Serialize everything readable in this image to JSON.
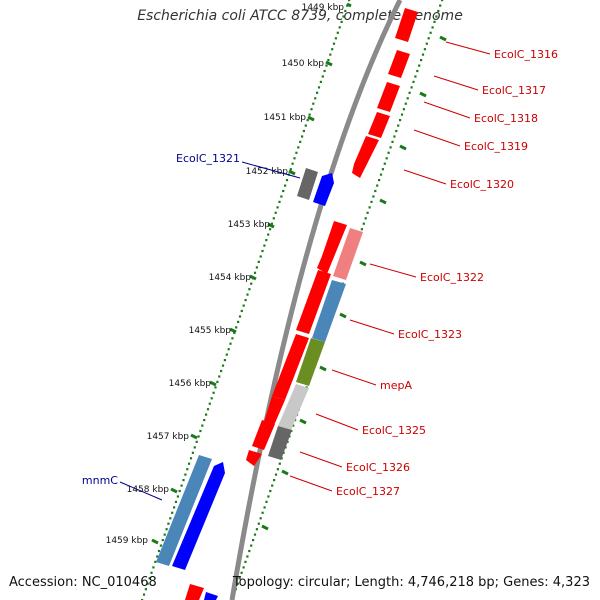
{
  "title": "Escherichia coli ATCC 8739, complete genome",
  "footer": {
    "accession": "Accession: NC_010468",
    "summary": "Topology: circular; Length: 4,746,218 bp; Genes: 4,323"
  },
  "colors": {
    "backbone": "#8a8a8a",
    "tick": "#1a7a1a",
    "label_forward": "#00008b",
    "label_reverse": "#cc0000",
    "gene_red": "#ff0000",
    "gene_blue": "#0000ff",
    "gene_steel": "#4a86b8",
    "gene_olive": "#6b8e23",
    "gene_gray": "#666666",
    "gene_lightgray": "#c8c8c8",
    "gene_pink": "#f08080"
  },
  "ticks": [
    "1449 kbp",
    "1450 kbp",
    "1451 kbp",
    "1452 kbp",
    "1453 kbp",
    "1454 kbp",
    "1455 kbp",
    "1456 kbp",
    "1457 kbp",
    "1458 kbp",
    "1459 kbp"
  ],
  "forward_labels": [
    "EcolC_1321",
    "mnmC"
  ],
  "reverse_labels": [
    "EcolC_1316",
    "EcolC_1317",
    "EcolC_1318",
    "EcolC_1319",
    "EcolC_1320",
    "EcolC_1322",
    "EcolC_1323",
    "mepA",
    "EcolC_1325",
    "EcolC_1326",
    "EcolC_1327"
  ]
}
